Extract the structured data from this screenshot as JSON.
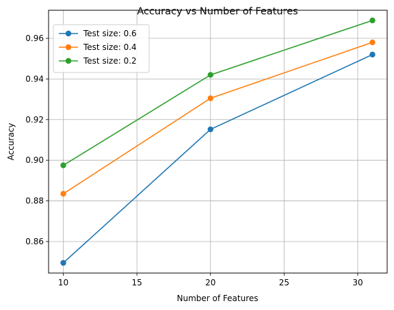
{
  "chart_data": {
    "type": "line",
    "title": "Accuracy vs Number of Features",
    "xlabel": "Number of Features",
    "ylabel": "Accuracy",
    "x": [
      10,
      20,
      31
    ],
    "xlim": [
      9.0,
      32.0
    ],
    "ylim": [
      0.8445,
      0.9738
    ],
    "xticks": [
      10,
      15,
      20,
      25,
      30
    ],
    "yticks": [
      0.86,
      0.88,
      0.9,
      0.92,
      0.94,
      0.96
    ],
    "xtick_labels": [
      "10",
      "15",
      "20",
      "25",
      "30"
    ],
    "ytick_labels": [
      "0.86",
      "0.88",
      "0.90",
      "0.92",
      "0.94",
      "0.96"
    ],
    "grid": true,
    "legend_position": "top-left",
    "series": [
      {
        "name": "Test size: 0.6",
        "color": "#1f77b4",
        "values": [
          0.8495,
          0.9152,
          0.952
        ]
      },
      {
        "name": "Test size: 0.4",
        "color": "#ff7f0e",
        "values": [
          0.8835,
          0.9305,
          0.958
        ]
      },
      {
        "name": "Test size: 0.2",
        "color": "#2ca02c",
        "values": [
          0.8975,
          0.942,
          0.9688
        ]
      }
    ]
  }
}
